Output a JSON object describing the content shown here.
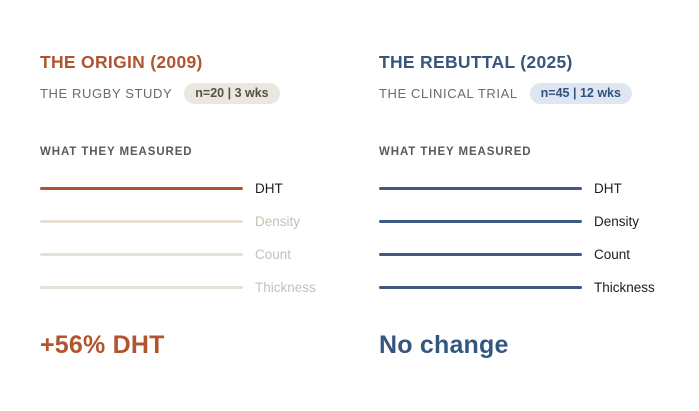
{
  "columns": [
    {
      "title": "THE ORIGIN (2009)",
      "subtitle": "THE RUGBY STUDY",
      "badge": "n=20 | 3 wks",
      "section_heading": "WHAT THEY MEASURED",
      "measures": [
        {
          "label": "DHT",
          "highlighted": true
        },
        {
          "label": "Density",
          "highlighted": false
        },
        {
          "label": "Count",
          "highlighted": false
        },
        {
          "label": "Thickness",
          "highlighted": false
        }
      ],
      "result": "+56% DHT",
      "colors": {
        "accent": "#b2542f",
        "badge_bg": "#ebe6df",
        "badge_text": "#55504a",
        "faded_line": "#e7dfd4",
        "faded_label": "#c8bfb3"
      }
    },
    {
      "title": "THE REBUTTAL (2025)",
      "subtitle": "THE CLINICAL TRIAL",
      "badge": "n=45 | 12 wks",
      "section_heading": "WHAT THEY MEASURED",
      "measures": [
        {
          "label": "DHT",
          "highlighted": true
        },
        {
          "label": "Density",
          "highlighted": true
        },
        {
          "label": "Count",
          "highlighted": true
        },
        {
          "label": "Thickness",
          "highlighted": true
        }
      ],
      "result": "No change",
      "colors": {
        "accent": "#3a5a80",
        "badge_bg": "#dfe6f2",
        "badge_text": "#2f5380",
        "label": "#1d1d1f"
      }
    }
  ]
}
